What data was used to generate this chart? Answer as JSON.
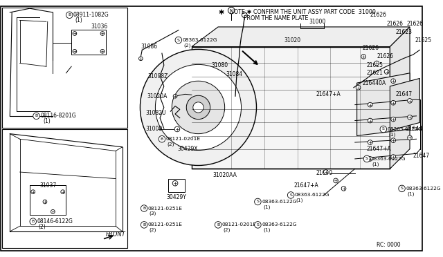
{
  "bg_color": "#ffffff",
  "line_color": "#000000",
  "text_color": "#000000",
  "fig_width": 6.4,
  "fig_height": 3.72,
  "note_line1": "NOTE;✱ CONFIRM THE UNIT ASSY PART CODE  31000",
  "note_line2": "        FROM THE NAME PLATE",
  "rc_text": "RC: 0000",
  "front_text": "FRONT"
}
